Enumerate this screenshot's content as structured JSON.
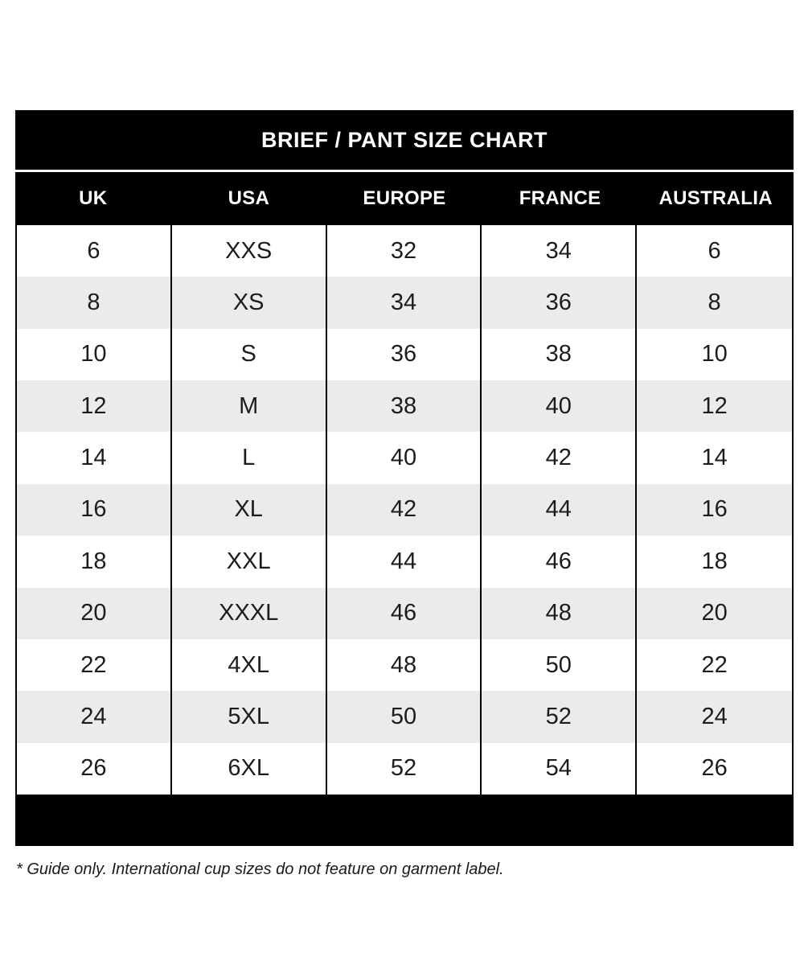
{
  "chart_data": {
    "type": "table",
    "title": "BRIEF / PANT SIZE CHART",
    "columns": [
      "UK",
      "USA",
      "EUROPE",
      "FRANCE",
      "AUSTRALIA"
    ],
    "rows": [
      [
        "6",
        "XXS",
        "32",
        "34",
        "6"
      ],
      [
        "8",
        "XS",
        "34",
        "36",
        "8"
      ],
      [
        "10",
        "S",
        "36",
        "38",
        "10"
      ],
      [
        "12",
        "M",
        "38",
        "40",
        "12"
      ],
      [
        "14",
        "L",
        "40",
        "42",
        "14"
      ],
      [
        "16",
        "XL",
        "42",
        "44",
        "16"
      ],
      [
        "18",
        "XXL",
        "44",
        "46",
        "18"
      ],
      [
        "20",
        "XXXL",
        "46",
        "48",
        "20"
      ],
      [
        "22",
        "4XL",
        "48",
        "50",
        "22"
      ],
      [
        "24",
        "5XL",
        "50",
        "52",
        "24"
      ],
      [
        "26",
        "6XL",
        "52",
        "54",
        "26"
      ]
    ],
    "footnote": "* Guide only. International cup sizes do not feature on garment label.",
    "layout": {
      "striped_row_color": "#ebebeb",
      "band_color": "#000000",
      "band_text_color": "#ffffff",
      "grid_line_color": "#000000"
    }
  }
}
